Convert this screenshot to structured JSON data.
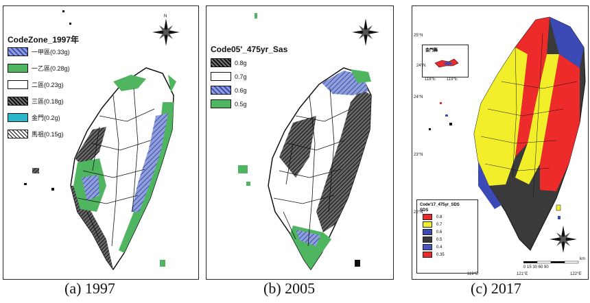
{
  "captions": {
    "a": "(a) 1997",
    "b": "(b) 2005",
    "c": "(c) 2017"
  },
  "panel_a": {
    "legend_title": "CodeZone_1997年",
    "legend": [
      {
        "label": "一甲區(0.33g)",
        "color": "#6f85c9",
        "pattern": "hatch-blue"
      },
      {
        "label": "一乙區(0.28g)",
        "color": "#4fb560",
        "pattern": "solid-green"
      },
      {
        "label": "二區(0.23g)",
        "color": "#ffffff",
        "pattern": "blank"
      },
      {
        "label": "三區(0.18g)",
        "color": "#444444",
        "pattern": "hatch-dark"
      },
      {
        "label": "金門(0.2g)",
        "color": "#2bb6cc",
        "pattern": "dots-cyan"
      },
      {
        "label": "馬祖(0.15g)",
        "color": "#ffffff",
        "pattern": "hatch-black"
      }
    ]
  },
  "panel_b": {
    "legend_title": "Code05'_475yr_Sas",
    "legend": [
      {
        "label": "0.8g",
        "color": "#333333",
        "pattern": "hatch-dark"
      },
      {
        "label": "0.7g",
        "color": "#ffffff",
        "pattern": "blank"
      },
      {
        "label": "0.6g",
        "color": "#6f85c9",
        "pattern": "hatch-blue"
      },
      {
        "label": "0.5g",
        "color": "#4fb560",
        "pattern": "solid-green"
      }
    ]
  },
  "panel_c": {
    "legend_title": "Code'17_475yr_SDS",
    "legend_subtitle": "SDS",
    "legend": [
      {
        "label": "0.8",
        "color": "#ee2b2b"
      },
      {
        "label": "0.7",
        "color": "#f2ef2a"
      },
      {
        "label": "0.6",
        "color": "#3b4ab5"
      },
      {
        "label": "0.5",
        "color": "#3a3a3a"
      },
      {
        "label": "0.4",
        "color": "#4a55c0"
      },
      {
        "label": "0.35",
        "color": "#ee2b2b"
      }
    ],
    "inset_label": "金門縣",
    "scale_unit": "km",
    "scale_ticks": "0 15 30      60      90",
    "lat_ticks": [
      "25°N",
      "24°N",
      "23°N",
      "22°N"
    ],
    "lon_ticks": [
      "119°E",
      "121°E",
      "122°E"
    ],
    "inset_ticks": [
      "118°E",
      "119°E",
      "24°N"
    ]
  },
  "colors": {
    "red": "#ee2b2b",
    "yellow": "#f2ef2a",
    "blue": "#3b4ab5",
    "dark": "#3a3a3a",
    "green": "#4fb560",
    "hatchblue": "#6f85c9"
  }
}
